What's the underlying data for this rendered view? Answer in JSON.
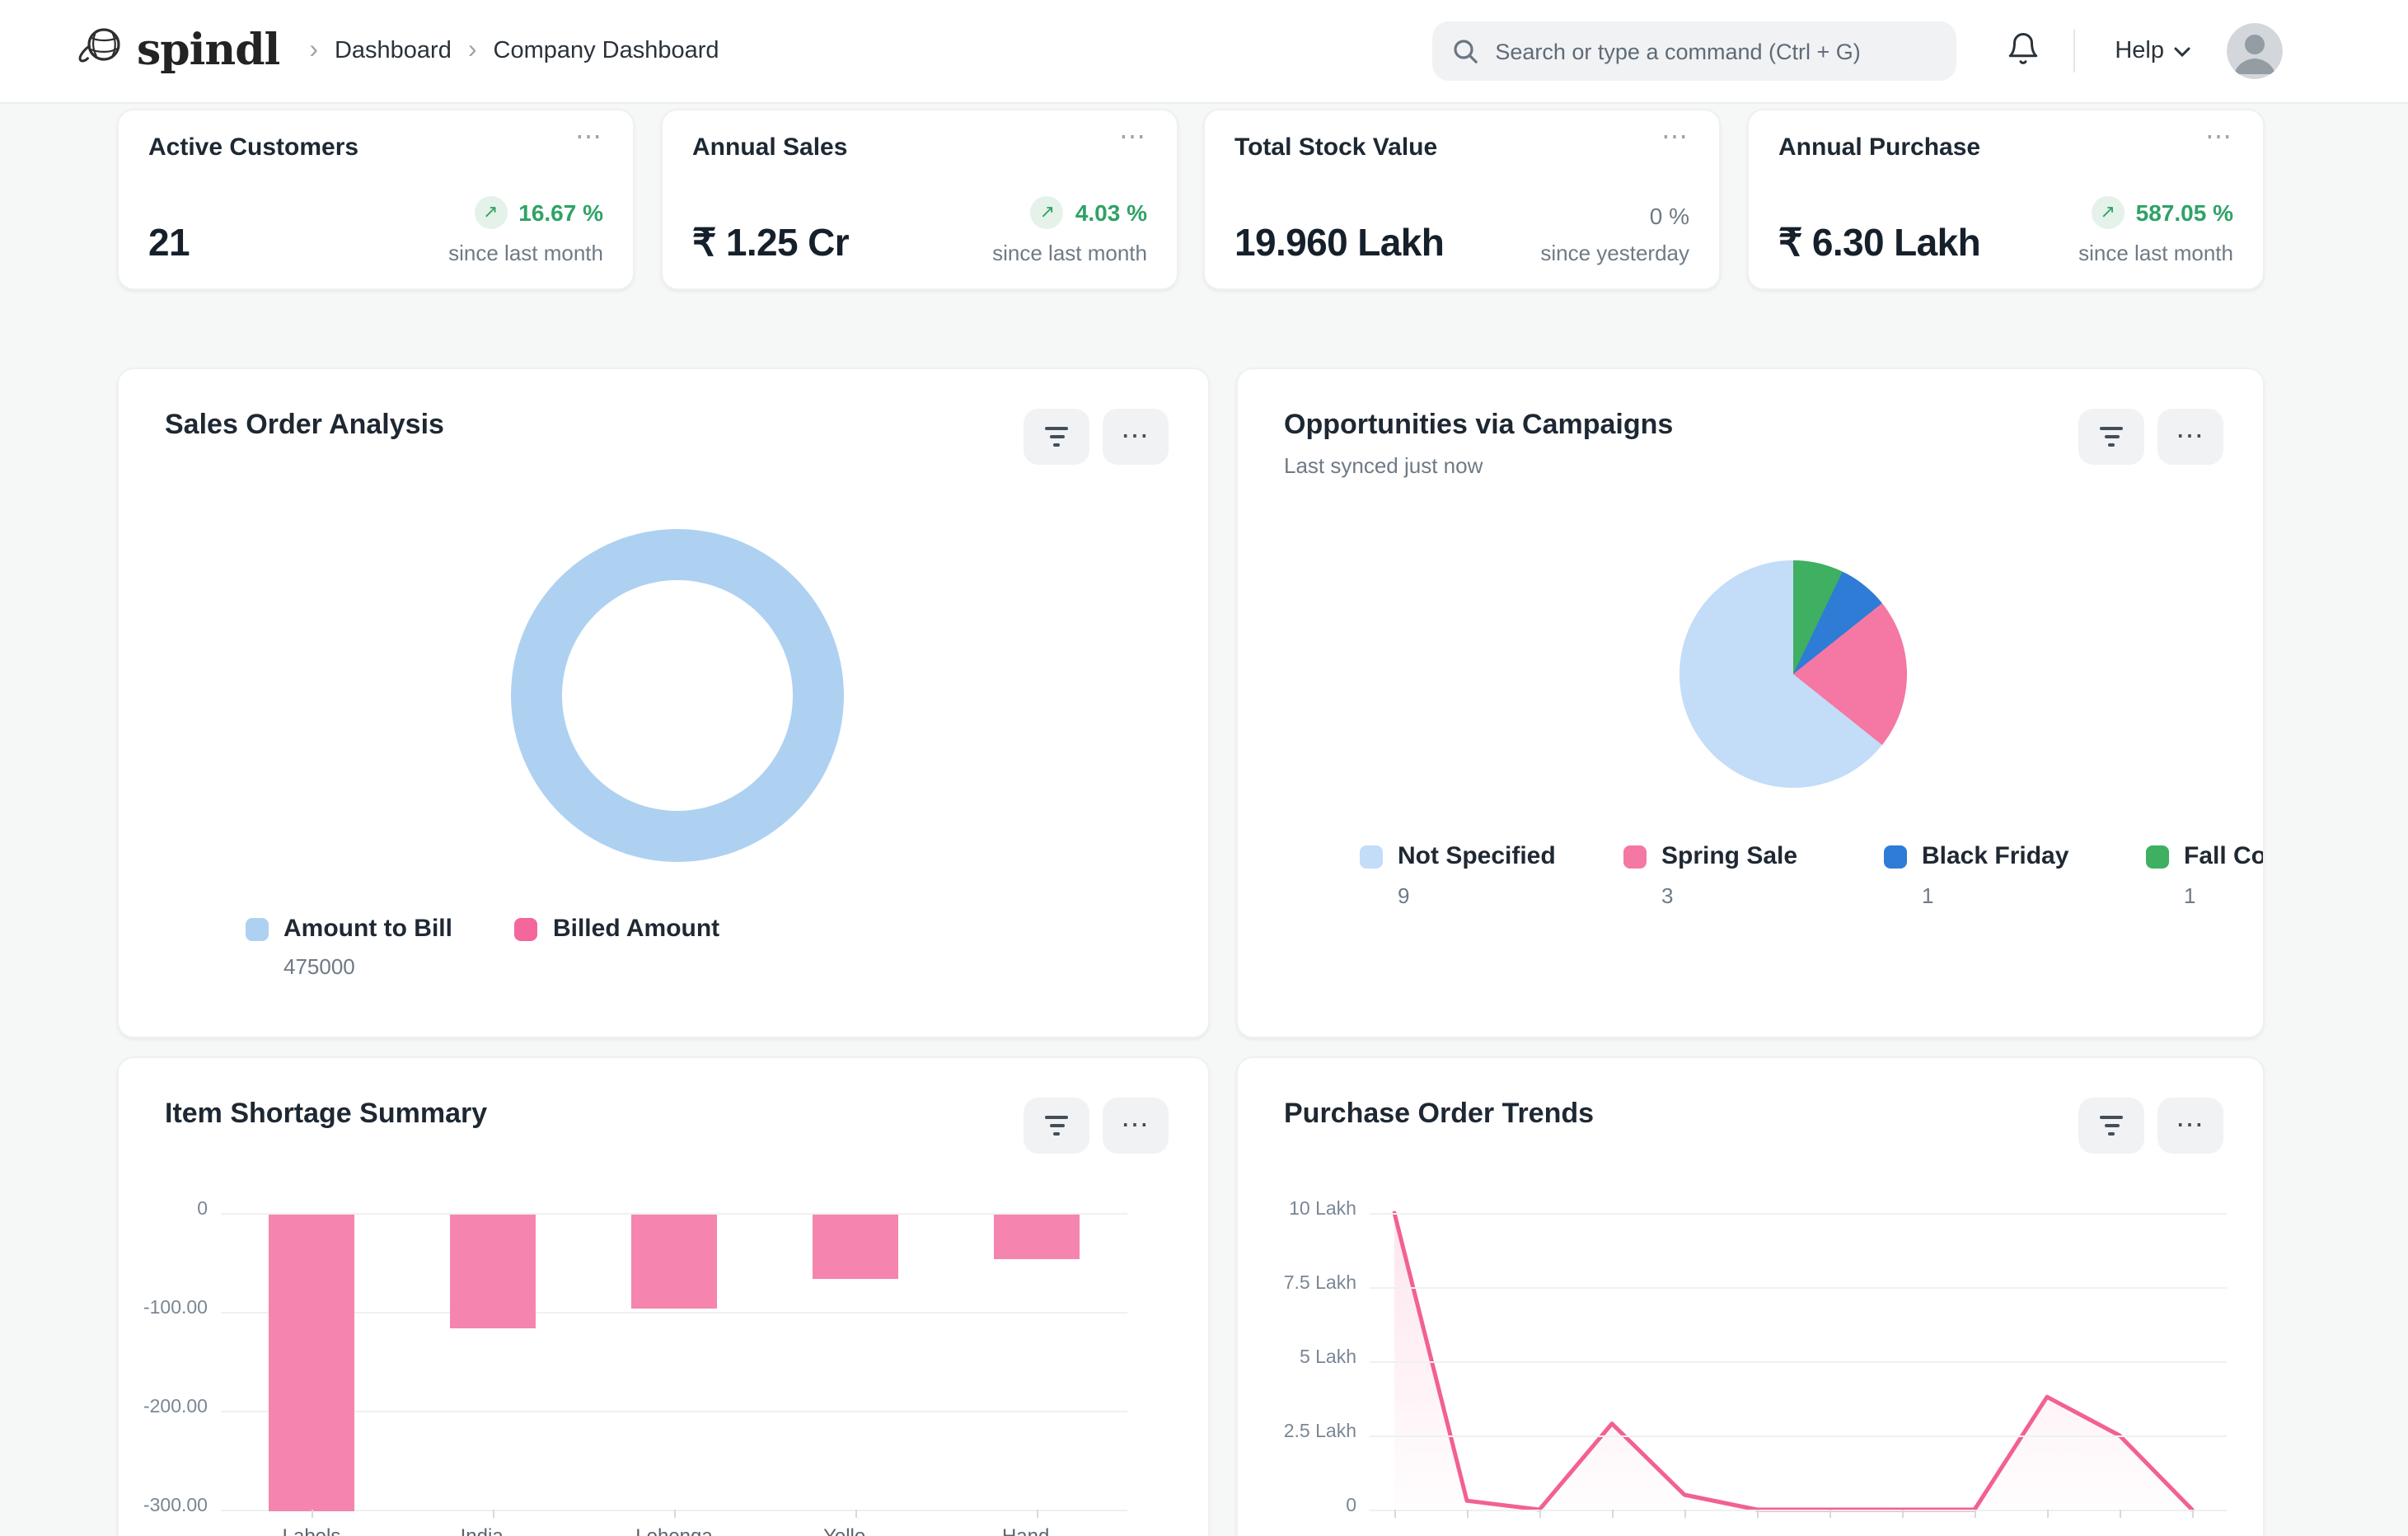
{
  "header": {
    "logo_text": "spindl",
    "breadcrumb": {
      "items": [
        "Dashboard",
        "Company Dashboard"
      ]
    },
    "search_placeholder": "Search or type a command (Ctrl + G)",
    "help_label": "Help"
  },
  "kpis": [
    {
      "title": "Active Customers",
      "value": "21",
      "change": "16.67 %",
      "trend": "up",
      "period": "since last month"
    },
    {
      "title": "Annual Sales",
      "value": "₹ 1.25 Cr",
      "change": "4.03 %",
      "trend": "up",
      "period": "since last month"
    },
    {
      "title": "Total Stock Value",
      "value": "19.960 Lakh",
      "change": "0 %",
      "trend": "flat",
      "period": "since yesterday"
    },
    {
      "title": "Annual Purchase",
      "value": "₹ 6.30 Lakh",
      "change": "587.05 %",
      "trend": "up",
      "period": "since last month"
    }
  ],
  "cards": {
    "sales": {
      "title": "Sales Order Analysis"
    },
    "campaigns": {
      "title": "Opportunities via Campaigns",
      "subtitle": "Last synced just now"
    },
    "shortage": {
      "title": "Item Shortage Summary"
    },
    "po_trends": {
      "title": "Purchase Order Trends"
    }
  },
  "chart_data": [
    {
      "id": "sales-order-analysis",
      "type": "pie",
      "subtype": "donut",
      "title": "Sales Order Analysis",
      "series": [
        {
          "name": "Amount to Bill",
          "value": 475000
        },
        {
          "name": "Billed Amount",
          "value": 0
        }
      ],
      "colors": [
        "#AED1F2",
        "#F4679C"
      ],
      "legend_position": "bottom",
      "visible_value_label": "475000"
    },
    {
      "id": "opportunities-via-campaigns",
      "type": "pie",
      "title": "Opportunities via Campaigns",
      "series": [
        {
          "name": "Not Specified",
          "value": 9
        },
        {
          "name": "Spring Sale",
          "value": 3
        },
        {
          "name": "Black Friday",
          "value": 1
        },
        {
          "name": "Fall Coll",
          "value": 1
        }
      ],
      "colors": [
        "#C3DCF7",
        "#F478A3",
        "#2E7CD6",
        "#3FAF62"
      ],
      "legend_position": "bottom"
    },
    {
      "id": "item-shortage-summary",
      "type": "bar",
      "title": "Item Shortage Summary",
      "categories": [
        "Labels",
        "India ...",
        "Lehenga",
        "Yello ...",
        "Hand ..."
      ],
      "values": [
        -300,
        -115,
        -95,
        -65,
        -45
      ],
      "yticks": [
        "0",
        "-100.00",
        "-200.00",
        "-300.00"
      ],
      "ylim": [
        -300,
        0
      ],
      "grid": true,
      "bar_color": "#F585AE"
    },
    {
      "id": "purchase-order-trends",
      "type": "line",
      "title": "Purchase Order Trends",
      "x_labels": [
        "...",
        "...",
        "...",
        "...",
        "...",
        "...",
        "...",
        "...",
        "...",
        "...",
        "...",
        "..."
      ],
      "values_lakh": [
        10,
        0.3,
        0,
        2.9,
        0.5,
        0,
        0,
        0,
        0,
        3.8,
        2.5,
        0
      ],
      "yticks": [
        "10 Lakh",
        "7.5 Lakh",
        "5 Lakh",
        "2.5 Lakh",
        "0"
      ],
      "ylim": [
        0,
        10
      ],
      "grid": true,
      "line_color": "#F2618F"
    }
  ]
}
